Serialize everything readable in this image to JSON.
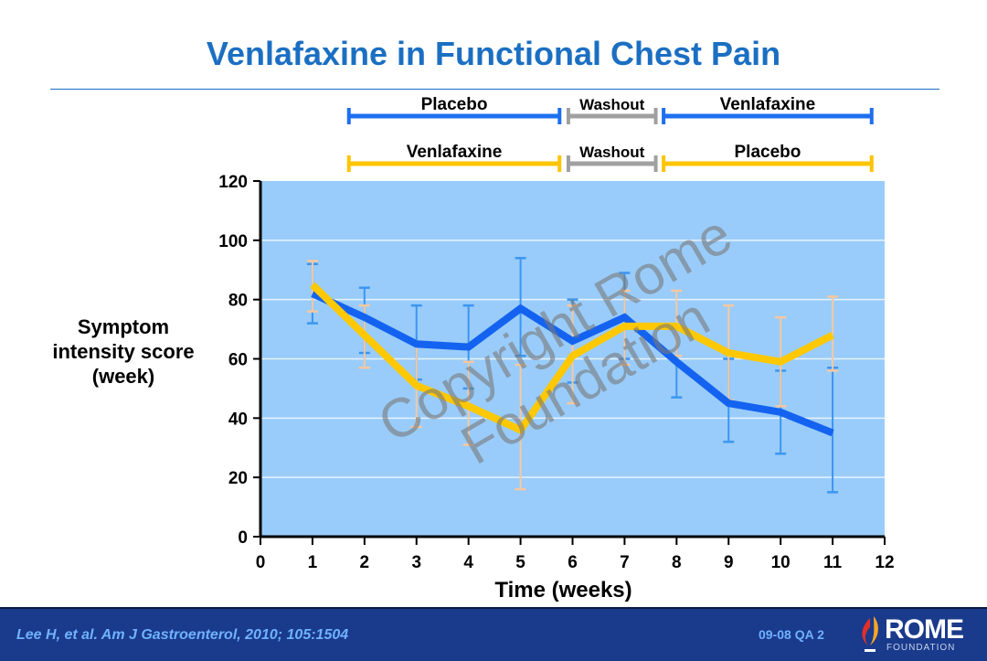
{
  "title": "Venlafaxine in Functional Chest Pain",
  "arms": [
    {
      "row": 1,
      "segments": [
        {
          "label": "Placebo",
          "from": 1.7,
          "to": 5.75,
          "color": "#1e6ff0"
        },
        {
          "label": "Washout",
          "from": 5.92,
          "to": 7.6,
          "color": "#a0a0a0"
        },
        {
          "label": "Venlafaxine",
          "from": 7.75,
          "to": 11.75,
          "color": "#1e6ff0"
        }
      ]
    },
    {
      "row": 2,
      "segments": [
        {
          "label": "Venlafaxine",
          "from": 1.7,
          "to": 5.75,
          "color": "#ffc400"
        },
        {
          "label": "Washout",
          "from": 5.92,
          "to": 7.6,
          "color": "#a0a0a0"
        },
        {
          "label": "Placebo",
          "from": 7.75,
          "to": 11.75,
          "color": "#ffc400"
        }
      ]
    }
  ],
  "chart_data": {
    "type": "line",
    "xlabel": "Time (weeks)",
    "ylabel": [
      "Symptom",
      "intensity score",
      "(week)"
    ],
    "xlim": [
      0,
      12
    ],
    "ylim": [
      0,
      120
    ],
    "xticks": [
      0,
      1,
      2,
      3,
      4,
      5,
      6,
      7,
      8,
      9,
      10,
      11,
      12
    ],
    "yticks": [
      0,
      20,
      40,
      60,
      80,
      100,
      120
    ],
    "grid": true,
    "x": [
      1,
      2,
      3,
      4,
      5,
      6,
      7,
      8,
      9,
      10,
      11
    ],
    "series": [
      {
        "name": "Placebo → Venlafaxine",
        "color": "#1463f0",
        "errcolor": "#3c96f0",
        "values": [
          82,
          74,
          65,
          64,
          77,
          66,
          74,
          59,
          45,
          42,
          35
        ],
        "err_low": [
          72,
          62,
          53,
          50,
          61,
          52,
          60,
          47,
          32,
          28,
          15
        ],
        "err_high": [
          92,
          84,
          78,
          78,
          94,
          80,
          89,
          71,
          60,
          56,
          57
        ]
      },
      {
        "name": "Venlafaxine → Placebo",
        "color": "#ffc800",
        "errcolor": "#f5c8a0",
        "values": [
          85,
          68,
          51,
          44,
          36,
          61,
          71,
          71,
          62,
          59,
          68
        ],
        "err_low": [
          76,
          57,
          37,
          31,
          16,
          45,
          58,
          61,
          46,
          44,
          56
        ],
        "err_high": [
          93,
          78,
          65,
          59,
          58,
          78,
          83,
          83,
          78,
          74,
          81
        ]
      }
    ]
  },
  "footer": {
    "citation": "Lee H, et al. Am J Gastroenterol, 2010; 105:1504",
    "code": "09-08  QA 2",
    "logo_main": "ROME",
    "logo_sub": "FOUNDATION"
  },
  "watermark": "Copyright Rome Foundation"
}
